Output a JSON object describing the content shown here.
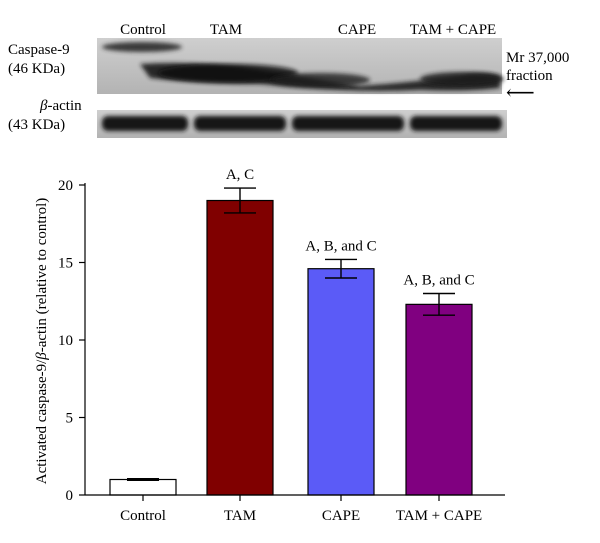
{
  "blot": {
    "lane_labels": [
      "Control",
      "TAM",
      "CAPE",
      "TAM + CAPE"
    ],
    "caspase": {
      "name": "Caspase-9",
      "size": "(46 KDa)"
    },
    "actin": {
      "name_greek": "β",
      "name_rest": "-actin",
      "size": "(43 KDa)"
    },
    "fraction_note": {
      "line1": "Mr 37,000",
      "line2": "fraction",
      "arrow": "⟵"
    },
    "band_color": "#1a1a1a",
    "membrane_color": "#bdbdbd"
  },
  "chart_data": {
    "type": "bar",
    "categories": [
      "Control",
      "TAM",
      "CAPE",
      "TAM + CAPE"
    ],
    "series": [
      {
        "values": [
          1.0,
          19.0,
          14.6,
          12.3
        ],
        "errors": [
          0.05,
          0.8,
          0.6,
          0.7
        ],
        "colors": [
          "#ffffff",
          "#800000",
          "#5b5bf7",
          "#800080"
        ],
        "annotations": [
          "",
          "A, C",
          "A, B, and C",
          "A, B, and C"
        ]
      }
    ],
    "ylabel": {
      "prefix": "Activated caspase-9/",
      "greek": "β",
      "suffix": "-actin (relative to control)"
    },
    "ylim": [
      0,
      20
    ],
    "yticks": [
      0,
      5,
      10,
      15,
      20
    ],
    "grid": false,
    "legend": "none"
  }
}
